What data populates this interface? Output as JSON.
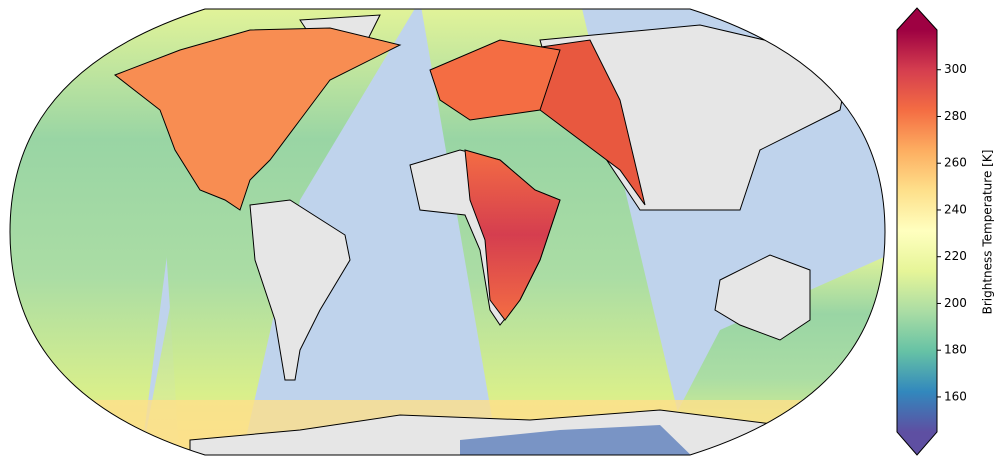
{
  "chart_data": {
    "type": "map",
    "colorbar": {
      "label": "Brightness Temperature [K]",
      "lim": [
        145,
        317
      ],
      "ticks": [
        160,
        180,
        200,
        220,
        240,
        260,
        280,
        300
      ],
      "colors": [
        "#5e4fa2",
        "#3288bd",
        "#66c2a5",
        "#abdda4",
        "#e6f598",
        "#ffffbf",
        "#fee08b",
        "#fdae61",
        "#f46d43",
        "#d53e4f",
        "#9e0142"
      ]
    }
  }
}
